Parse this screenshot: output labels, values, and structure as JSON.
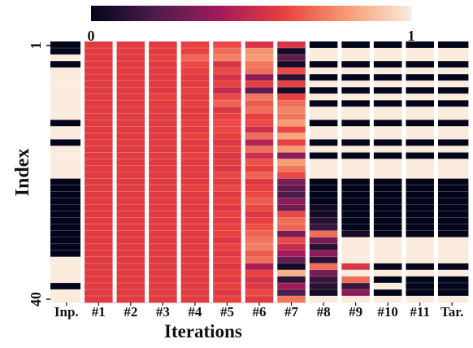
{
  "chart_data": {
    "type": "heatmap",
    "xlabel": "Iterations",
    "ylabel": "Index",
    "columns": [
      "Inp.",
      "#1",
      "#2",
      "#3",
      "#4",
      "#5",
      "#6",
      "#7",
      "#8",
      "#9",
      "#10",
      "#11",
      "Tar."
    ],
    "y_tick_labels": [
      "1",
      "40"
    ],
    "n_rows": 40,
    "colorbar": {
      "min_label": "0",
      "max_label": "1",
      "min": 0,
      "max": 1,
      "placement": "top"
    },
    "colormap": "rocket",
    "values": [
      [
        0,
        0.58,
        0.58,
        0.58,
        0.6,
        0.62,
        0.55,
        0.55,
        0,
        0,
        0,
        0,
        0
      ],
      [
        0,
        0.58,
        0.58,
        0.58,
        0.6,
        0.7,
        0.78,
        0.05,
        1,
        1,
        1,
        1,
        1
      ],
      [
        1,
        0.58,
        0.58,
        0.6,
        0.68,
        0.74,
        0.8,
        0.25,
        1,
        1,
        1,
        1,
        1
      ],
      [
        0,
        0.58,
        0.58,
        0.58,
        0.62,
        0.55,
        0.72,
        0.05,
        0,
        0,
        0,
        0,
        0
      ],
      [
        1,
        0.58,
        0.58,
        0.58,
        0.6,
        0.62,
        0.7,
        0.62,
        1,
        1,
        1,
        1,
        1
      ],
      [
        1,
        0.58,
        0.58,
        0.58,
        0.58,
        0.54,
        0.35,
        0.12,
        0,
        0,
        0,
        0,
        0
      ],
      [
        1,
        0.58,
        0.58,
        0.58,
        0.58,
        0.6,
        0.6,
        0.6,
        1,
        1,
        1,
        1,
        1
      ],
      [
        1,
        0.58,
        0.58,
        0.58,
        0.6,
        0.5,
        0.25,
        0.05,
        0,
        0,
        0,
        0,
        0
      ],
      [
        1,
        0.58,
        0.58,
        0.6,
        0.58,
        0.62,
        0.72,
        0.6,
        1,
        1,
        1,
        1,
        1
      ],
      [
        1,
        0.58,
        0.58,
        0.58,
        0.6,
        0.68,
        0.66,
        0.7,
        0,
        0,
        0,
        0,
        0
      ],
      [
        1,
        0.58,
        0.58,
        0.58,
        0.58,
        0.56,
        0.7,
        0.75,
        1,
        1,
        1,
        1,
        1
      ],
      [
        1,
        0.58,
        0.58,
        0.58,
        0.58,
        0.6,
        0.6,
        0.72,
        1,
        1,
        1,
        1,
        1
      ],
      [
        0,
        0.58,
        0.58,
        0.58,
        0.6,
        0.62,
        0.62,
        0.8,
        0,
        0,
        0,
        0,
        0
      ],
      [
        1,
        0.58,
        0.58,
        0.58,
        0.58,
        0.62,
        0.52,
        0.62,
        1,
        1,
        1,
        1,
        1
      ],
      [
        1,
        0.58,
        0.58,
        0.58,
        0.6,
        0.6,
        0.7,
        0.82,
        1,
        1,
        1,
        1,
        1
      ],
      [
        0,
        0.58,
        0.58,
        0.58,
        0.58,
        0.56,
        0.45,
        0.6,
        0,
        0,
        0,
        0,
        0
      ],
      [
        1,
        0.58,
        0.58,
        0.58,
        0.58,
        0.6,
        0.7,
        0.8,
        1,
        1,
        1,
        1,
        1
      ],
      [
        1,
        0.58,
        0.58,
        0.58,
        0.6,
        0.56,
        0.52,
        0.35,
        0,
        0,
        0,
        0,
        0
      ],
      [
        1,
        0.58,
        0.58,
        0.58,
        0.58,
        0.58,
        0.64,
        0.8,
        1,
        1,
        1,
        1,
        1
      ],
      [
        1,
        0.58,
        0.58,
        0.58,
        0.58,
        0.56,
        0.6,
        0.72,
        1,
        1,
        1,
        1,
        1
      ],
      [
        1,
        0.58,
        0.58,
        0.58,
        0.58,
        0.62,
        0.68,
        0.62,
        1,
        1,
        1,
        1,
        1
      ],
      [
        0,
        0.58,
        0.58,
        0.58,
        0.58,
        0.58,
        0.56,
        0.3,
        0,
        0,
        0,
        0,
        0
      ],
      [
        0,
        0.58,
        0.58,
        0.58,
        0.6,
        0.62,
        0.6,
        0.25,
        0,
        0,
        0,
        0,
        0
      ],
      [
        0,
        0.58,
        0.58,
        0.58,
        0.58,
        0.58,
        0.62,
        0.2,
        0,
        0,
        0,
        0,
        0
      ],
      [
        0,
        0.58,
        0.58,
        0.58,
        0.58,
        0.6,
        0.66,
        0.35,
        0,
        0,
        0,
        0,
        0
      ],
      [
        0,
        0.58,
        0.58,
        0.58,
        0.58,
        0.56,
        0.62,
        0.28,
        0.05,
        0,
        0,
        0,
        0
      ],
      [
        0,
        0.58,
        0.58,
        0.58,
        0.58,
        0.6,
        0.56,
        0.62,
        0.05,
        0,
        0,
        0,
        0
      ],
      [
        0,
        0.58,
        0.58,
        0.58,
        0.58,
        0.58,
        0.6,
        0.7,
        0.1,
        0,
        0,
        0,
        0
      ],
      [
        0,
        0.58,
        0.58,
        0.58,
        0.58,
        0.6,
        0.64,
        0.68,
        0.15,
        0,
        0,
        0,
        0
      ],
      [
        0,
        0.58,
        0.58,
        0.58,
        0.58,
        0.6,
        0.68,
        0.3,
        0.7,
        0.05,
        0,
        0,
        0
      ],
      [
        0,
        0.58,
        0.58,
        0.58,
        0.58,
        0.56,
        0.72,
        0.62,
        0.3,
        1,
        1,
        1,
        1
      ],
      [
        0,
        0.58,
        0.58,
        0.58,
        0.58,
        0.6,
        0.74,
        0.5,
        0.1,
        1,
        1,
        1,
        1
      ],
      [
        0,
        0.58,
        0.58,
        0.58,
        0.58,
        0.58,
        0.66,
        0.4,
        0.35,
        1,
        1,
        1,
        1
      ],
      [
        1,
        0.58,
        0.58,
        0.58,
        0.58,
        0.6,
        0.7,
        0.25,
        0.1,
        1,
        1,
        1,
        1
      ],
      [
        1,
        0.58,
        0.58,
        0.58,
        0.58,
        0.56,
        0.42,
        0.05,
        0.7,
        0.55,
        0,
        0,
        0
      ],
      [
        1,
        0.58,
        0.58,
        0.58,
        0.58,
        0.6,
        0.6,
        0.85,
        0.3,
        1,
        1,
        1,
        1
      ],
      [
        1,
        0.58,
        0.58,
        0.58,
        0.58,
        0.58,
        0.54,
        0.12,
        0.15,
        0.7,
        0,
        0,
        0
      ],
      [
        0,
        0.58,
        0.58,
        0.58,
        0.58,
        0.6,
        0.56,
        0.4,
        0.1,
        0.15,
        1,
        0,
        0
      ],
      [
        1,
        0.58,
        0.58,
        0.58,
        0.58,
        0.56,
        0.62,
        0.2,
        0.05,
        0.35,
        0,
        0,
        0
      ],
      [
        1,
        0.58,
        0.58,
        0.58,
        0.58,
        0.6,
        0.58,
        0.72,
        1,
        1,
        1,
        1,
        1
      ]
    ]
  }
}
